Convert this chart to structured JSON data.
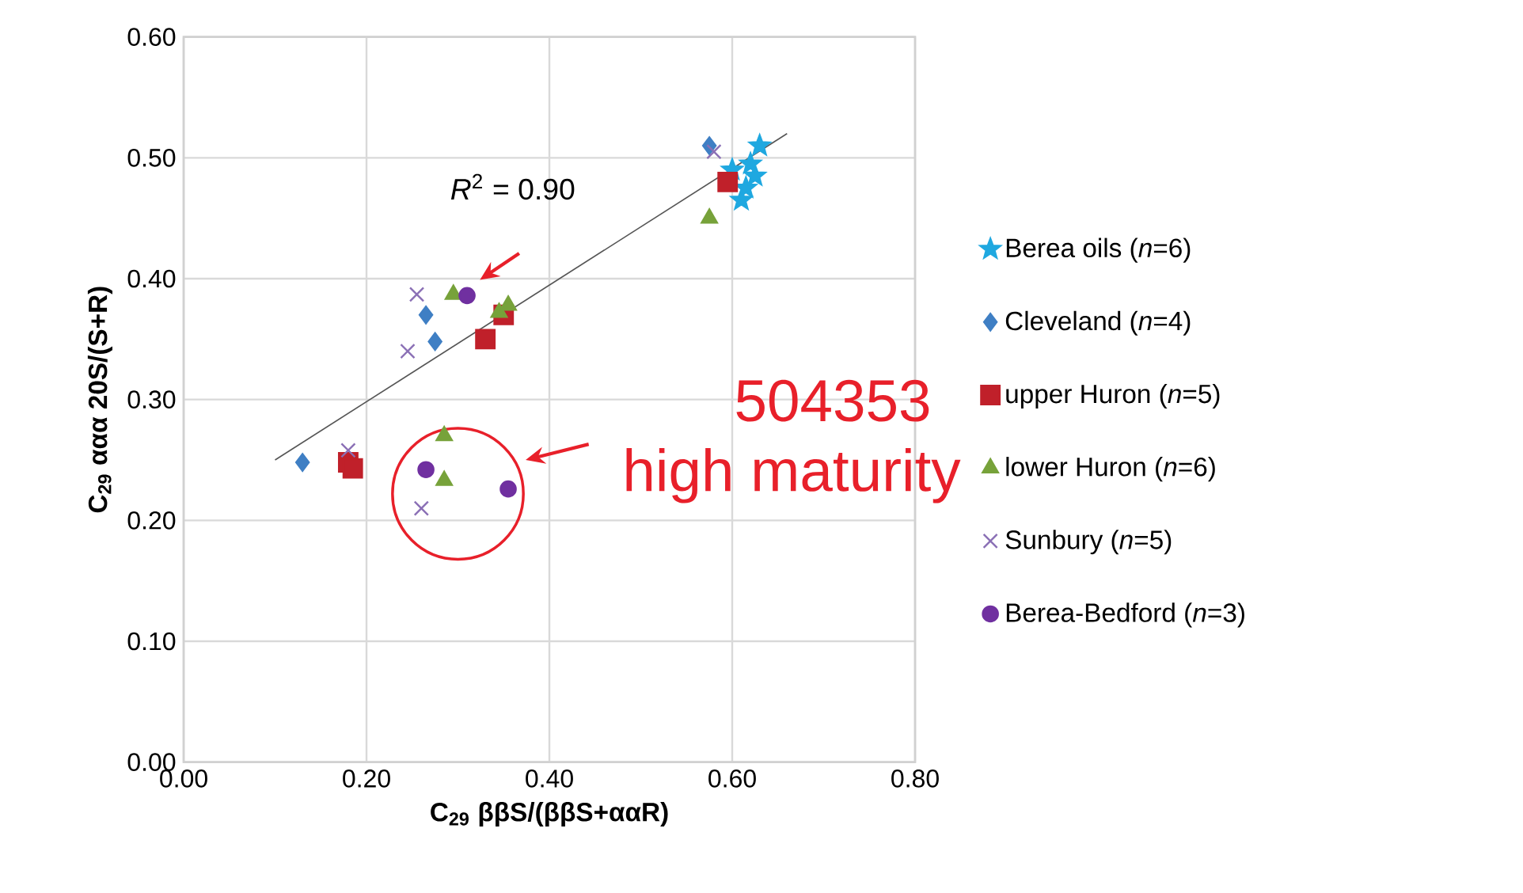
{
  "chart_data": {
    "type": "scatter",
    "xlabel": "C$_{29}$ ββS/(ββS+ααR)",
    "ylabel": "C$_{29}$ ααα 20S/(S+R)",
    "xlim": [
      0,
      0.8
    ],
    "ylim": [
      0,
      0.6
    ],
    "xticks": [
      {
        "value": 0,
        "label": "0.00"
      },
      {
        "value": 0.2,
        "label": "0.20"
      },
      {
        "value": 0.4,
        "label": "0.40"
      },
      {
        "value": 0.6,
        "label": "0.60"
      },
      {
        "value": 0.8,
        "label": "0.80"
      }
    ],
    "yticks": [
      {
        "value": 0,
        "label": "0.00"
      },
      {
        "value": 0.1,
        "label": "0.10"
      },
      {
        "value": 0.2,
        "label": "0.20"
      },
      {
        "value": 0.3,
        "label": "0.30"
      },
      {
        "value": 0.4,
        "label": "0.40"
      },
      {
        "value": 0.5,
        "label": "0.50"
      },
      {
        "value": 0.6,
        "label": "0.60"
      }
    ],
    "grid": true,
    "legend": "right",
    "annotations": [
      "*R*$^{2}$ = 0.90",
      "504353",
      "high maturity"
    ],
    "series": [
      {
        "name": "Berea oils (*n*=6)",
        "color": "#1fa8e0",
        "marker": "star",
        "x": [
          0.61,
          0.62,
          0.63,
          0.625,
          0.615,
          0.6
        ],
        "values": [
          0.465,
          0.495,
          0.51,
          0.485,
          0.475,
          0.49
        ]
      },
      {
        "name": "Cleveland (*n*=4)",
        "color": "#3f7fc4",
        "marker": "diamond",
        "x": [
          0.13,
          0.265,
          0.275,
          0.575
        ],
        "values": [
          0.248,
          0.37,
          0.348,
          0.51
        ]
      },
      {
        "name": "upper Huron (*n*=5)",
        "color": "#c0202a",
        "marker": "square",
        "x": [
          0.18,
          0.185,
          0.33,
          0.35,
          0.595
        ],
        "values": [
          0.248,
          0.243,
          0.35,
          0.37,
          0.48
        ]
      },
      {
        "name": "lower Huron (*n*=6)",
        "color": "#77a23a",
        "marker": "triangle",
        "x": [
          0.285,
          0.285,
          0.295,
          0.345,
          0.355,
          0.575
        ],
        "values": [
          0.27,
          0.233,
          0.387,
          0.372,
          0.378,
          0.45
        ]
      },
      {
        "name": "Sunbury (*n*=5)",
        "color": "#8a6fb5",
        "marker": "cross",
        "x": [
          0.18,
          0.26,
          0.245,
          0.255,
          0.58
        ],
        "values": [
          0.258,
          0.21,
          0.34,
          0.387,
          0.505
        ]
      },
      {
        "name": "Berea-Bedford (*n*=3)",
        "color": "#7030a0",
        "marker": "circle",
        "x": [
          0.265,
          0.31,
          0.355
        ],
        "values": [
          0.242,
          0.386,
          0.226
        ]
      },
      {
        "type": "line",
        "color": "#555555",
        "marker": "none",
        "line_style": "solid",
        "x": [
          0.1,
          0.66
        ],
        "values": [
          0.25,
          0.52
        ]
      }
    ]
  }
}
